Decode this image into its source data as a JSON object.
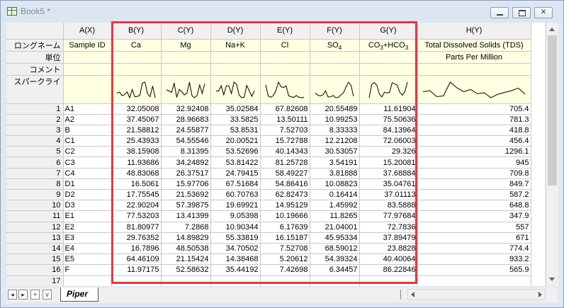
{
  "window": {
    "title": "Book5 *"
  },
  "columns": [
    {
      "key": "A",
      "header": "A(X)",
      "long_name": "Sample ID",
      "unit": "",
      "comment": ""
    },
    {
      "key": "B",
      "header": "B(Y)",
      "long_name": "Ca",
      "unit": "",
      "comment": ""
    },
    {
      "key": "C",
      "header": "C(Y)",
      "long_name": "Mg",
      "unit": "",
      "comment": ""
    },
    {
      "key": "D",
      "header": "D(Y)",
      "long_name": "Na+K",
      "unit": "",
      "comment": ""
    },
    {
      "key": "E",
      "header": "E(Y)",
      "long_name": "Cl",
      "unit": "",
      "comment": ""
    },
    {
      "key": "F",
      "header": "F(Y)",
      "long_name": "SO",
      "long_name_sub": "4",
      "unit": "",
      "comment": ""
    },
    {
      "key": "G",
      "header": "G(Y)",
      "long_name": "CO",
      "long_name_sub": "3",
      "long_name_suffix": "+HCO",
      "long_name_sub2": "3",
      "unit": "",
      "comment": ""
    },
    {
      "key": "H",
      "header": "H(Y)",
      "long_name": "Total Dissolved Solids (TDS)",
      "unit": "Parts Per Million",
      "comment": ""
    }
  ],
  "row_labels": {
    "long_name": "ロングネーム",
    "unit": "単位",
    "comment": "コメント",
    "sparkline": "スパークライ"
  },
  "rows": [
    {
      "n": "1",
      "A": "A1",
      "B": "32.05008",
      "C": "32.92408",
      "D": "35.02584",
      "E": "67.82608",
      "F": "20.55489",
      "G": "11.61904",
      "H": "705.4"
    },
    {
      "n": "2",
      "A": "A2",
      "B": "37.45067",
      "C": "28.96683",
      "D": "33.5825",
      "E": "13.50111",
      "F": "10.99253",
      "G": "75.50636",
      "H": "781.3"
    },
    {
      "n": "3",
      "A": "B",
      "B": "21.58812",
      "C": "24.55877",
      "D": "53.8531",
      "E": "7.52703",
      "F": "8.33333",
      "G": "84.13964",
      "H": "418.8"
    },
    {
      "n": "4",
      "A": "C1",
      "B": "25.43933",
      "C": "54.55546",
      "D": "20.00521",
      "E": "15.72788",
      "F": "12.21208",
      "G": "72.06003",
      "H": "456.4"
    },
    {
      "n": "5",
      "A": "C2",
      "B": "38.15908",
      "C": "8.31395",
      "D": "53.52696",
      "E": "40.14343",
      "F": "30.53057",
      "G": "29.326",
      "H": "1296.1"
    },
    {
      "n": "6",
      "A": "C3",
      "B": "11.93686",
      "C": "34.24892",
      "D": "53.81422",
      "E": "81.25728",
      "F": "3.54191",
      "G": "15.20081",
      "H": "945"
    },
    {
      "n": "7",
      "A": "C4",
      "B": "48.83068",
      "C": "26.37517",
      "D": "24.79415",
      "E": "58.49227",
      "F": "3.81888",
      "G": "37.68884",
      "H": "709.8"
    },
    {
      "n": "8",
      "A": "D1",
      "B": "16.5061",
      "C": "15.97706",
      "D": "67.51684",
      "E": "54.86416",
      "F": "10.08823",
      "G": "35.04761",
      "H": "849.7"
    },
    {
      "n": "9",
      "A": "D2",
      "B": "17.75545",
      "C": "21.53692",
      "D": "60.70763",
      "E": "62.82473",
      "F": "0.16414",
      "G": "37.01113",
      "H": "587.2"
    },
    {
      "n": "10",
      "A": "D3",
      "B": "22.90204",
      "C": "57.39875",
      "D": "19.69921",
      "E": "14.95129",
      "F": "1.45992",
      "G": "83.5888",
      "H": "648.8"
    },
    {
      "n": "11",
      "A": "E1",
      "B": "77.53203",
      "C": "13.41399",
      "D": "9.05398",
      "E": "10.19666",
      "F": "11.8265",
      "G": "77.97684",
      "H": "347.9"
    },
    {
      "n": "12",
      "A": "E2",
      "B": "81.80977",
      "C": "7.2868",
      "D": "10.90344",
      "E": "6.17639",
      "F": "21.04001",
      "G": "72.7836",
      "H": "557"
    },
    {
      "n": "13",
      "A": "E3",
      "B": "29.76352",
      "C": "14.89829",
      "D": "55.33819",
      "E": "16.15187",
      "F": "45.95334",
      "G": "37.89479",
      "H": "671"
    },
    {
      "n": "14",
      "A": "E4",
      "B": "16.7896",
      "C": "48.50538",
      "D": "34.70502",
      "E": "7.52708",
      "F": "68.59012",
      "G": "23.8828",
      "H": "774.4"
    },
    {
      "n": "15",
      "A": "E5",
      "B": "64.46109",
      "C": "21.15424",
      "D": "14.38468",
      "E": "5.20612",
      "F": "54.39324",
      "G": "40.40064",
      "H": "933.2"
    },
    {
      "n": "16",
      "A": "F",
      "B": "11.97175",
      "C": "52.58632",
      "D": "35.44192",
      "E": "7.42698",
      "F": "6.34457",
      "G": "86.22846",
      "H": "565.9"
    },
    {
      "n": "17",
      "A": "",
      "B": "",
      "C": "",
      "D": "",
      "E": "",
      "F": "",
      "G": "",
      "H": ""
    }
  ],
  "sheet_tab": {
    "label": "Piper"
  },
  "nav_buttons": [
    "◂",
    "▸",
    "+",
    "v"
  ],
  "colors": {
    "highlight": "#e8363d",
    "meta_bg": "#ffffe1",
    "header_bg": "#f0f0f0"
  }
}
